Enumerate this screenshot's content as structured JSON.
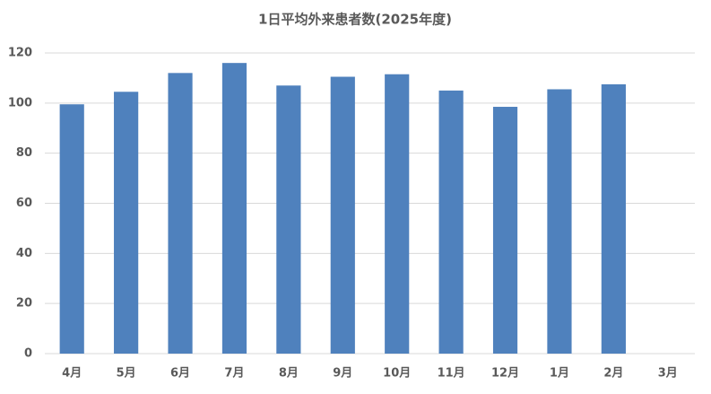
{
  "chart_data": {
    "type": "bar",
    "title": "1日平均外来患者数(2025年度)",
    "categories": [
      "4月",
      "5月",
      "6月",
      "7月",
      "8月",
      "9月",
      "10月",
      "11月",
      "12月",
      "1月",
      "2月",
      "3月"
    ],
    "values": [
      99.5,
      104.5,
      112,
      116,
      107,
      110.5,
      111.5,
      105,
      98.5,
      105.5,
      107.5,
      null
    ],
    "color": "#4f81bd",
    "ylim": [
      0,
      120
    ],
    "yticks": [
      0,
      20,
      40,
      60,
      80,
      100,
      120
    ],
    "grid": true
  }
}
